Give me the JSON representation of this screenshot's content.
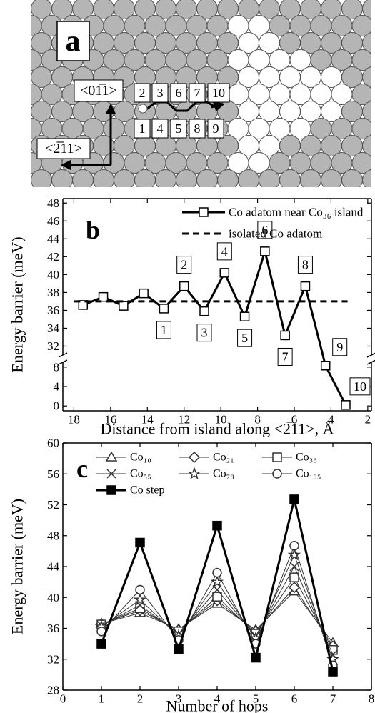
{
  "panel_a": {
    "label": "a",
    "directions": [
      "<01̅1>",
      "<2̅11>"
    ],
    "sites_top": [
      "2",
      "3",
      "6",
      "7",
      "10"
    ],
    "sites_bottom": [
      "1",
      "4",
      "5",
      "8",
      "9"
    ]
  },
  "chart_data": [
    {
      "type": "line",
      "panel_label": "b",
      "x_label": "Distance from island along <2̅11>, Å",
      "y_label": "Energy barrier (meV)",
      "xlim": [
        18.6,
        1.8
      ],
      "xticks": [
        18,
        16,
        14,
        12,
        10,
        8,
        6,
        4,
        2
      ],
      "ylim": [
        -1,
        48.5
      ],
      "y_break": [
        9,
        31
      ],
      "yticks": [
        0,
        4,
        8,
        32,
        34,
        36,
        38,
        40,
        42,
        44,
        46,
        48
      ],
      "series": [
        {
          "name": "Co adatom near Co₃₆ island",
          "color": "#000000",
          "marker": "square",
          "style": "solid",
          "line_width": 3,
          "x": [
            17.5,
            16.4,
            15.3,
            14.2,
            13.1,
            12.0,
            10.9,
            9.8,
            8.7,
            7.6,
            6.5,
            5.4,
            4.3,
            3.2
          ],
          "values": [
            36.6,
            37.5,
            36.5,
            37.9,
            36.2,
            38.7,
            35.9,
            40.2,
            35.3,
            42.6,
            33.2,
            38.7,
            8.3,
            0.2
          ],
          "point_labels": [
            null,
            null,
            null,
            null,
            "1",
            "2",
            "3",
            "4",
            "5",
            "6",
            "7",
            "8",
            "9",
            "10"
          ]
        },
        {
          "name": "isolated Co adatom",
          "color": "#000000",
          "style": "dashed",
          "line_width": 3,
          "x": [
            18,
            3.1
          ],
          "values": [
            37,
            37
          ]
        }
      ]
    },
    {
      "type": "line",
      "panel_label": "c",
      "x_label": "Number of hops",
      "y_label": "Energy barrier (meV)",
      "xlim": [
        0,
        8
      ],
      "xticks": [
        0,
        1,
        2,
        3,
        4,
        5,
        6,
        7,
        8
      ],
      "ylim": [
        28,
        60
      ],
      "yticks": [
        28,
        32,
        36,
        40,
        44,
        48,
        52,
        56,
        60
      ],
      "x": [
        1,
        2,
        3,
        4,
        5,
        6,
        7
      ],
      "series": [
        {
          "name": "Co₁₀",
          "color": "#333333",
          "marker": "triangle",
          "line_width": 1,
          "values": [
            36.6,
            38.0,
            35.9,
            39.2,
            35.8,
            40.8,
            34.1
          ]
        },
        {
          "name": "Co₂₁",
          "color": "#333333",
          "marker": "diamond",
          "line_width": 1,
          "values": [
            36.6,
            38.3,
            35.8,
            39.6,
            35.6,
            41.3,
            33.7
          ]
        },
        {
          "name": "Co₃₆",
          "color": "#333333",
          "marker": "square",
          "line_width": 1,
          "values": [
            36.5,
            38.6,
            35.6,
            40.1,
            35.3,
            42.6,
            33.2
          ]
        },
        {
          "name": "Co₅₅",
          "color": "#333333",
          "marker": "x",
          "line_width": 1,
          "values": [
            36.4,
            39.0,
            35.3,
            41.0,
            35.0,
            44.0,
            32.6
          ]
        },
        {
          "name": "Co₇₈",
          "color": "#333333",
          "marker": "star",
          "line_width": 1,
          "values": [
            36.2,
            39.7,
            35.0,
            42.0,
            34.7,
            45.5,
            32.0
          ]
        },
        {
          "name": "Co₁₀₅",
          "color": "#333333",
          "marker": "circle",
          "line_width": 1,
          "values": [
            35.6,
            41.0,
            34.5,
            43.2,
            34.0,
            46.7,
            31.2
          ]
        },
        {
          "name": "Co step",
          "color": "#000000",
          "marker": "filled-square",
          "line_width": 3,
          "values": [
            34.0,
            47.1,
            33.3,
            49.3,
            32.2,
            52.7,
            30.4
          ]
        }
      ]
    }
  ]
}
